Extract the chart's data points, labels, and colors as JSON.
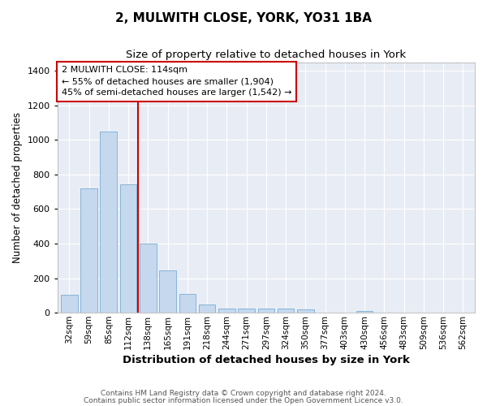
{
  "title": "2, MULWITH CLOSE, YORK, YO31 1BA",
  "subtitle": "Size of property relative to detached houses in York",
  "xlabel": "Distribution of detached houses by size in York",
  "ylabel": "Number of detached properties",
  "bar_color": "#c5d8ee",
  "bar_edge_color": "#7aadd4",
  "background_color": "#e8edf5",
  "grid_color": "#ffffff",
  "vline_color": "#cc0000",
  "vline_index": 3.5,
  "annotation_text": "2 MULWITH CLOSE: 114sqm\n← 55% of detached houses are smaller (1,904)\n45% of semi-detached houses are larger (1,542) →",
  "annotation_box_color": "#cc0000",
  "categories": [
    "32sqm",
    "59sqm",
    "85sqm",
    "112sqm",
    "138sqm",
    "165sqm",
    "191sqm",
    "218sqm",
    "244sqm",
    "271sqm",
    "297sqm",
    "324sqm",
    "350sqm",
    "377sqm",
    "403sqm",
    "430sqm",
    "456sqm",
    "483sqm",
    "509sqm",
    "536sqm",
    "562sqm"
  ],
  "values": [
    105,
    720,
    1050,
    745,
    400,
    245,
    110,
    50,
    25,
    25,
    25,
    25,
    20,
    0,
    0,
    10,
    0,
    0,
    0,
    0,
    0
  ],
  "ylim": [
    0,
    1450
  ],
  "yticks": [
    0,
    200,
    400,
    600,
    800,
    1000,
    1200,
    1400
  ],
  "footer_line1": "Contains HM Land Registry data © Crown copyright and database right 2024.",
  "footer_line2": "Contains public sector information licensed under the Open Government Licence v3.0.",
  "figsize": [
    6.0,
    5.0
  ],
  "dpi": 100
}
